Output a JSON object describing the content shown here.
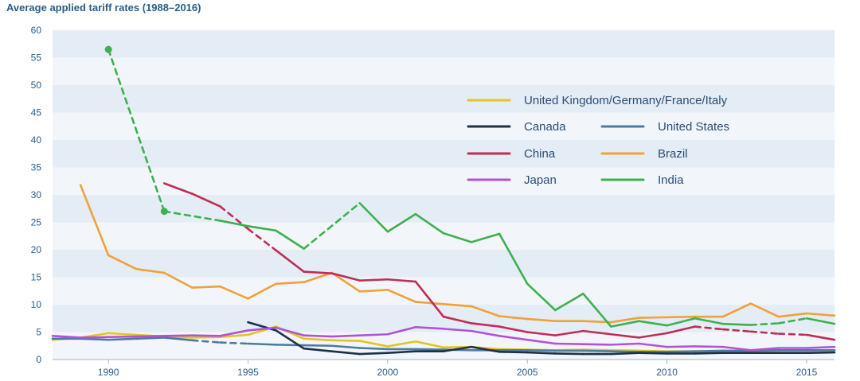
{
  "chart_data": {
    "type": "line",
    "title": "Average applied tariff rates (1988–2016)",
    "xlabel": "",
    "ylabel": "",
    "xlim": [
      1988,
      2016
    ],
    "ylim": [
      0,
      60
    ],
    "x_ticks": [
      1990,
      1995,
      2000,
      2005,
      2010,
      2015
    ],
    "y_ticks": [
      0,
      5,
      10,
      15,
      20,
      25,
      30,
      35,
      40,
      45,
      50,
      55,
      60
    ],
    "grid": "horizontal bands",
    "legend": [
      {
        "name": "United Kingdom/Germany/France/Italy",
        "color": "#e3c51f"
      },
      {
        "name": "Canada",
        "color": "#1d3146"
      },
      {
        "name": "United States",
        "color": "#4d7aa0"
      },
      {
        "name": "China",
        "color": "#c12c54"
      },
      {
        "name": "Brazil",
        "color": "#f2a038"
      },
      {
        "name": "Japan",
        "color": "#b054d6"
      },
      {
        "name": "India",
        "color": "#3fb04f"
      }
    ],
    "series": [
      {
        "name": "United Kingdom/Germany/France/Italy",
        "color": "#e3c51f",
        "points": [
          [
            1988,
            3.6
          ],
          [
            1989,
            4.0
          ],
          [
            1990,
            4.8
          ],
          [
            1991,
            4.5
          ],
          [
            1992,
            4.2
          ],
          [
            1993,
            4.0
          ],
          [
            1994,
            4.1
          ],
          [
            1995,
            4.5
          ],
          [
            1996,
            6.0
          ],
          [
            1997,
            3.8
          ],
          [
            1998,
            3.5
          ],
          [
            1999,
            3.4
          ],
          [
            2000,
            2.4
          ],
          [
            2001,
            3.3
          ],
          [
            2002,
            2.2
          ],
          [
            2003,
            2.3
          ],
          [
            2004,
            1.9
          ],
          [
            2005,
            1.8
          ],
          [
            2006,
            1.7
          ],
          [
            2007,
            1.8
          ],
          [
            2008,
            1.7
          ],
          [
            2009,
            1.6
          ],
          [
            2010,
            1.5
          ],
          [
            2011,
            1.5
          ],
          [
            2012,
            1.4
          ],
          [
            2013,
            1.3
          ],
          [
            2014,
            1.6
          ],
          [
            2015,
            1.6
          ],
          [
            2016,
            1.7
          ]
        ],
        "dashed_segments": []
      },
      {
        "name": "Canada",
        "color": "#1d3146",
        "points": [
          [
            1995,
            6.8
          ],
          [
            1996,
            5.3
          ],
          [
            1997,
            2.0
          ],
          [
            1998,
            1.5
          ],
          [
            1999,
            1.0
          ],
          [
            2000,
            1.2
          ],
          [
            2001,
            1.5
          ],
          [
            2002,
            1.5
          ],
          [
            2003,
            2.3
          ],
          [
            2004,
            1.4
          ],
          [
            2005,
            1.3
          ],
          [
            2006,
            1.1
          ],
          [
            2007,
            1.0
          ],
          [
            2008,
            1.0
          ],
          [
            2009,
            1.2
          ],
          [
            2010,
            1.1
          ],
          [
            2011,
            1.1
          ],
          [
            2012,
            1.2
          ],
          [
            2013,
            1.2
          ],
          [
            2014,
            1.2
          ],
          [
            2015,
            1.2
          ],
          [
            2016,
            1.3
          ]
        ],
        "dashed_segments": []
      },
      {
        "name": "United States",
        "color": "#4d7aa0",
        "points": [
          [
            1988,
            3.8
          ],
          [
            1989,
            3.8
          ],
          [
            1990,
            3.6
          ],
          [
            1991,
            3.8
          ],
          [
            1992,
            4.0
          ],
          [
            1993,
            3.5
          ],
          [
            1994,
            3.1
          ],
          [
            1995,
            2.9
          ],
          [
            1996,
            2.7
          ],
          [
            1997,
            2.6
          ],
          [
            1998,
            2.5
          ],
          [
            1999,
            2.1
          ],
          [
            2000,
            1.9
          ],
          [
            2001,
            1.9
          ],
          [
            2002,
            1.8
          ],
          [
            2003,
            1.7
          ],
          [
            2004,
            1.7
          ],
          [
            2005,
            1.7
          ],
          [
            2006,
            1.6
          ],
          [
            2007,
            1.6
          ],
          [
            2008,
            1.5
          ],
          [
            2009,
            1.4
          ],
          [
            2010,
            1.4
          ],
          [
            2011,
            1.5
          ],
          [
            2012,
            1.6
          ],
          [
            2013,
            1.6
          ],
          [
            2014,
            1.7
          ],
          [
            2015,
            1.7
          ],
          [
            2016,
            1.7
          ]
        ],
        "dashed_segments": [
          [
            1993,
            1995
          ]
        ]
      },
      {
        "name": "China",
        "color": "#c12c54",
        "points": [
          [
            1992,
            32.1
          ],
          [
            1993,
            30.2
          ],
          [
            1994,
            27.9
          ],
          [
            1995,
            23.8
          ],
          [
            1996,
            19.9
          ],
          [
            1997,
            16.0
          ],
          [
            1998,
            15.7
          ],
          [
            1999,
            14.4
          ],
          [
            2000,
            14.6
          ],
          [
            2001,
            14.2
          ],
          [
            2002,
            7.8
          ],
          [
            2003,
            6.6
          ],
          [
            2004,
            6.0
          ],
          [
            2005,
            5.0
          ],
          [
            2006,
            4.4
          ],
          [
            2007,
            5.2
          ],
          [
            2008,
            4.6
          ],
          [
            2009,
            4.0
          ],
          [
            2010,
            4.8
          ],
          [
            2011,
            6.0
          ],
          [
            2012,
            5.5
          ],
          [
            2013,
            5.1
          ],
          [
            2014,
            4.7
          ],
          [
            2015,
            4.5
          ],
          [
            2016,
            3.6
          ]
        ],
        "dashed_segments": [
          [
            1994,
            1996
          ],
          [
            2011,
            2015
          ]
        ]
      },
      {
        "name": "Brazil",
        "color": "#f2a038",
        "points": [
          [
            1989,
            31.8
          ],
          [
            1990,
            19.0
          ],
          [
            1991,
            16.5
          ],
          [
            1992,
            15.8
          ],
          [
            1993,
            13.1
          ],
          [
            1994,
            13.3
          ],
          [
            1995,
            11.1
          ],
          [
            1996,
            13.8
          ],
          [
            1997,
            14.1
          ],
          [
            1998,
            15.8
          ],
          [
            1999,
            12.4
          ],
          [
            2000,
            12.7
          ],
          [
            2001,
            10.5
          ],
          [
            2002,
            10.1
          ],
          [
            2003,
            9.7
          ],
          [
            2004,
            7.9
          ],
          [
            2005,
            7.4
          ],
          [
            2006,
            7.0
          ],
          [
            2007,
            7.0
          ],
          [
            2008,
            6.8
          ],
          [
            2009,
            7.6
          ],
          [
            2010,
            7.7
          ],
          [
            2011,
            7.8
          ],
          [
            2012,
            7.8
          ],
          [
            2013,
            10.2
          ],
          [
            2014,
            7.8
          ],
          [
            2015,
            8.4
          ],
          [
            2016,
            8.0
          ]
        ],
        "dashed_segments": []
      },
      {
        "name": "Japan",
        "color": "#b054d6",
        "points": [
          [
            1988,
            4.3
          ],
          [
            1989,
            4.0
          ],
          [
            1990,
            4.1
          ],
          [
            1991,
            4.2
          ],
          [
            1992,
            4.3
          ],
          [
            1993,
            4.4
          ],
          [
            1994,
            4.3
          ],
          [
            1995,
            5.3
          ],
          [
            1996,
            5.8
          ],
          [
            1997,
            4.4
          ],
          [
            1998,
            4.2
          ],
          [
            1999,
            4.4
          ],
          [
            2000,
            4.6
          ],
          [
            2001,
            5.9
          ],
          [
            2002,
            5.6
          ],
          [
            2003,
            5.2
          ],
          [
            2004,
            4.3
          ],
          [
            2005,
            3.6
          ],
          [
            2006,
            2.9
          ],
          [
            2007,
            2.8
          ],
          [
            2008,
            2.7
          ],
          [
            2009,
            2.9
          ],
          [
            2010,
            2.3
          ],
          [
            2011,
            2.4
          ],
          [
            2012,
            2.3
          ],
          [
            2013,
            1.7
          ],
          [
            2014,
            2.1
          ],
          [
            2015,
            2.1
          ],
          [
            2016,
            2.3
          ]
        ],
        "dashed_segments": []
      },
      {
        "name": "India",
        "color": "#3fb04f",
        "points": [
          [
            1990,
            56.5
          ],
          [
            1992,
            27.0
          ],
          [
            1994,
            25.3
          ],
          [
            1995,
            24.3
          ],
          [
            1996,
            23.5
          ],
          [
            1997,
            20.2
          ],
          [
            1999,
            28.5
          ],
          [
            2000,
            23.3
          ],
          [
            2001,
            26.5
          ],
          [
            2002,
            23.0
          ],
          [
            2003,
            21.4
          ],
          [
            2004,
            22.9
          ],
          [
            2005,
            13.8
          ],
          [
            2006,
            9.0
          ],
          [
            2007,
            12.0
          ],
          [
            2008,
            6.0
          ],
          [
            2009,
            7.0
          ],
          [
            2010,
            6.2
          ],
          [
            2011,
            7.5
          ],
          [
            2012,
            6.5
          ],
          [
            2013,
            6.3
          ],
          [
            2014,
            6.6
          ],
          [
            2015,
            7.5
          ],
          [
            2016,
            6.5
          ]
        ],
        "dashed_segments": [
          [
            1990,
            1994
          ],
          [
            1997,
            1999
          ],
          [
            2013,
            2015
          ]
        ],
        "markers": [
          1990,
          1992
        ]
      }
    ]
  }
}
